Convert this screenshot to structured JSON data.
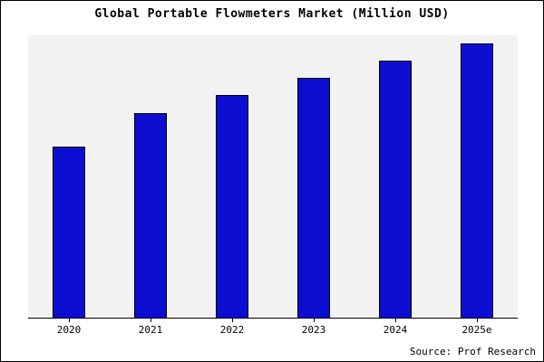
{
  "title": "Global Portable Flowmeters Market (Million USD)",
  "source": "Source: Prof Research",
  "chart_data": {
    "type": "bar",
    "title": "Global Portable Flowmeters Market (Million USD)",
    "categories": [
      "2020",
      "2021",
      "2022",
      "2023",
      "2024",
      "2025e"
    ],
    "values": [
      60.5,
      72.5,
      79,
      85,
      91,
      97
    ],
    "xlabel": "",
    "ylabel": "",
    "ylim": [
      0,
      100
    ],
    "grid": false,
    "legend_position": "none",
    "bar_color": "#0d0dd2",
    "bar_border_color": "#000000",
    "plot_background": "#f2f2f2",
    "note": "y-axis has no tick labels in source image; values are relative estimates scaled 0-100",
    "source_annotation": "Source: Prof Research"
  }
}
